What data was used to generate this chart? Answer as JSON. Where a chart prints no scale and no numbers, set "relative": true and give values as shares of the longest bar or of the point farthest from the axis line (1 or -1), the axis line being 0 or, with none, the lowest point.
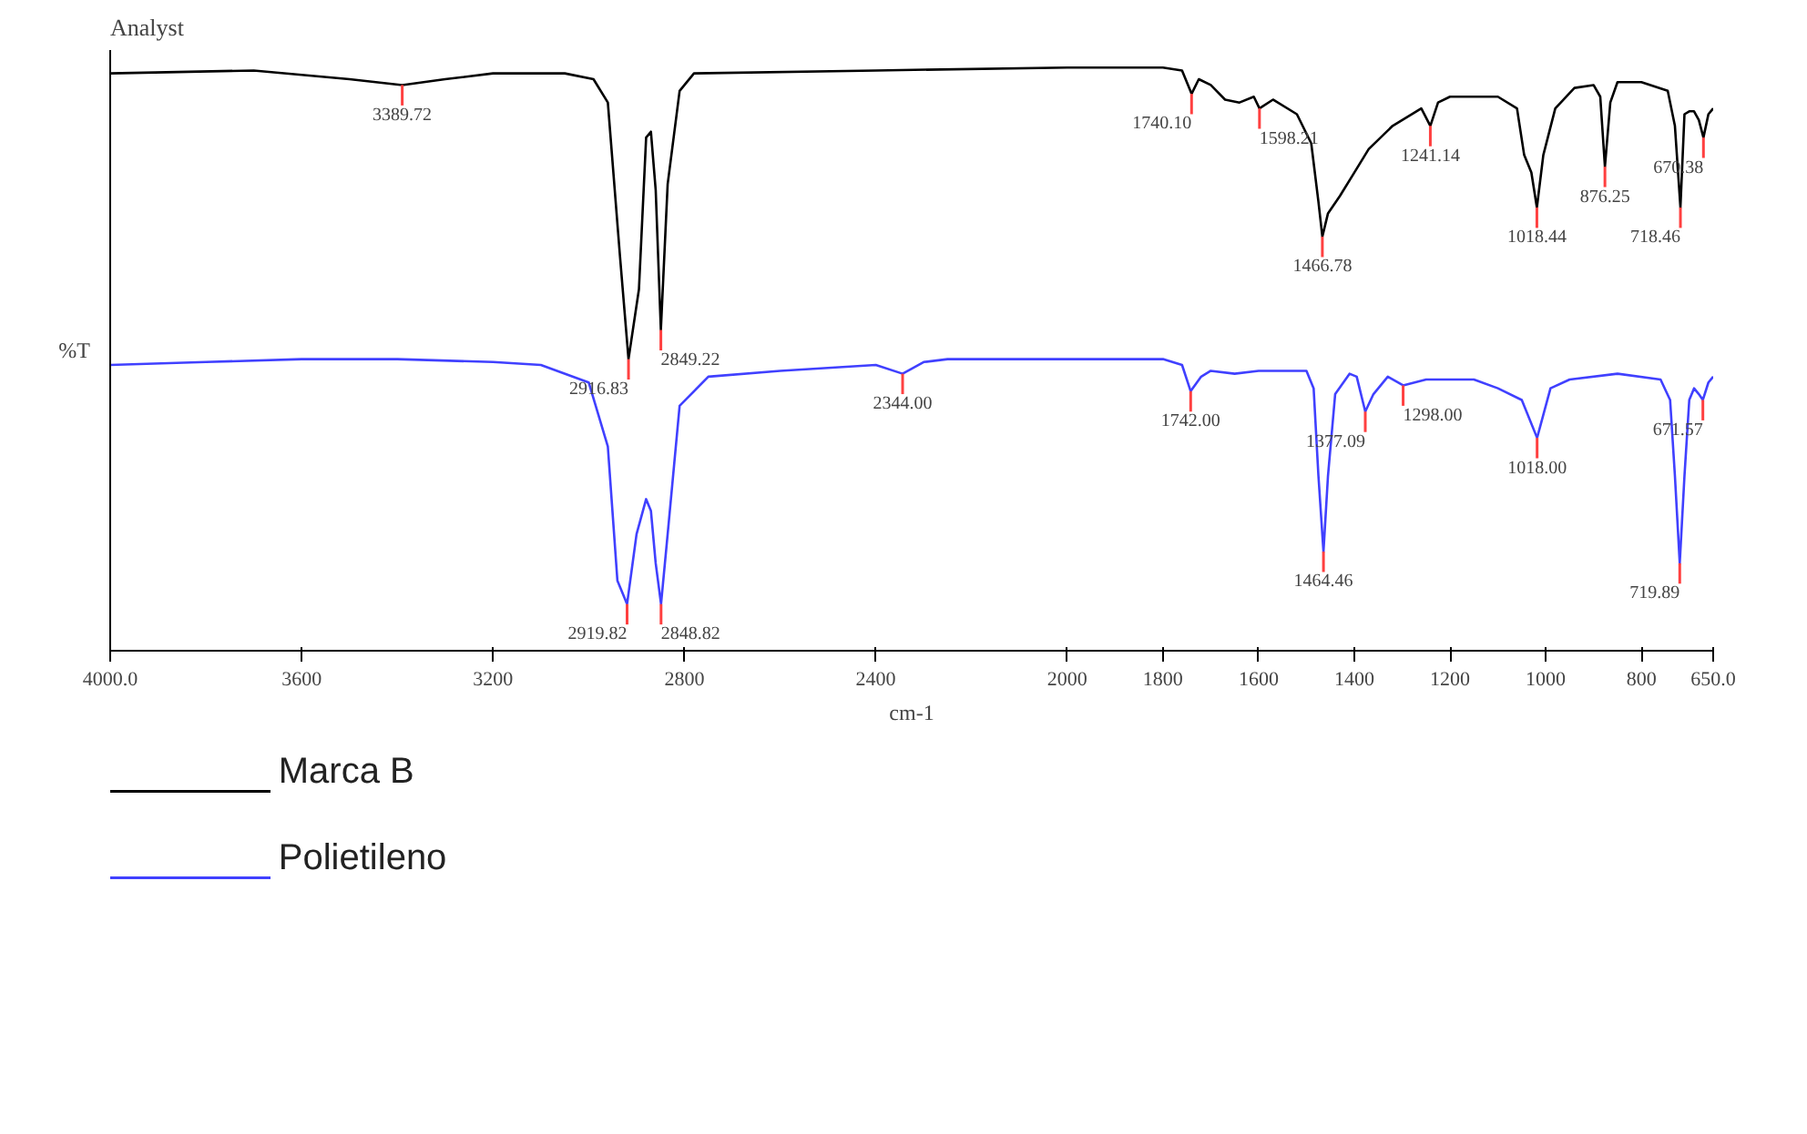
{
  "chart_data": {
    "type": "line",
    "title": "Analyst",
    "xlabel": "cm-1",
    "ylabel": "%T",
    "relative": true,
    "xlim": [
      4000,
      650
    ],
    "xticks": [
      {
        "value": 4000,
        "label": "4000.0"
      },
      3600,
      3200,
      2800,
      2400,
      2000,
      1800,
      1600,
      1400,
      1200,
      1000,
      800,
      {
        "value": 650,
        "label": "650.0"
      }
    ],
    "tick_labels": "x",
    "grid": false,
    "legend": "bottom",
    "marker": "none",
    "line_style": "solid",
    "series": [
      {
        "name": "Marca B",
        "color": "#000000",
        "x": [
          4000,
          3700,
          3500,
          3389.72,
          3300,
          3200,
          3050,
          2990,
          2960,
          2935,
          2916.83,
          2895,
          2880,
          2870,
          2860,
          2849.22,
          2835,
          2810,
          2780,
          2400,
          2000,
          1800,
          1760,
          1740.1,
          1725,
          1700,
          1670,
          1640,
          1610,
          1598.21,
          1570,
          1520,
          1490,
          1475,
          1466.78,
          1455,
          1430,
          1400,
          1370,
          1320,
          1260,
          1241.14,
          1225,
          1200,
          1100,
          1060,
          1045,
          1030,
          1018.44,
          1005,
          980,
          940,
          900,
          886,
          876.25,
          865,
          850,
          800,
          745,
          730,
          718.46,
          710,
          700,
          690,
          680,
          670.38,
          660,
          650
        ],
        "values": [
          0.99,
          0.995,
          0.98,
          0.97,
          0.98,
          0.99,
          0.99,
          0.98,
          0.94,
          0.68,
          0.5,
          0.62,
          0.88,
          0.89,
          0.79,
          0.55,
          0.8,
          0.96,
          0.99,
          0.995,
          1,
          1,
          0.995,
          0.955,
          0.98,
          0.97,
          0.945,
          0.94,
          0.95,
          0.93,
          0.945,
          0.92,
          0.87,
          0.77,
          0.71,
          0.75,
          0.78,
          0.82,
          0.86,
          0.9,
          0.93,
          0.9,
          0.94,
          0.95,
          0.95,
          0.93,
          0.85,
          0.82,
          0.76,
          0.85,
          0.93,
          0.965,
          0.97,
          0.95,
          0.83,
          0.94,
          0.975,
          0.975,
          0.96,
          0.9,
          0.76,
          0.92,
          0.925,
          0.925,
          0.91,
          0.88,
          0.92,
          0.93
        ]
      },
      {
        "name": "Polietileno",
        "color": "#4040ff",
        "x": [
          4000,
          3800,
          3600,
          3400,
          3200,
          3100,
          3000,
          2960,
          2940,
          2919.82,
          2900,
          2880,
          2870,
          2860,
          2848.82,
          2835,
          2810,
          2750,
          2600,
          2400,
          2344,
          2300,
          2250,
          2000,
          1800,
          1760,
          1742,
          1720,
          1700,
          1650,
          1600,
          1500,
          1485,
          1475,
          1464.46,
          1455,
          1440,
          1410,
          1395,
          1377.09,
          1360,
          1330,
          1298,
          1250,
          1150,
          1100,
          1050,
          1018,
          990,
          950,
          850,
          760,
          740,
          730,
          719.89,
          710,
          700,
          690,
          680,
          671.57,
          660,
          650
        ],
        "values": [
          0.49,
          0.495,
          0.5,
          0.5,
          0.495,
          0.49,
          0.46,
          0.35,
          0.12,
          0.08,
          0.2,
          0.26,
          0.24,
          0.15,
          0.08,
          0.2,
          0.42,
          0.47,
          0.48,
          0.49,
          0.475,
          0.495,
          0.5,
          0.5,
          0.5,
          0.49,
          0.445,
          0.47,
          0.48,
          0.475,
          0.48,
          0.48,
          0.45,
          0.3,
          0.17,
          0.3,
          0.44,
          0.475,
          0.47,
          0.41,
          0.44,
          0.47,
          0.455,
          0.465,
          0.465,
          0.45,
          0.43,
          0.365,
          0.45,
          0.465,
          0.475,
          0.465,
          0.43,
          0.3,
          0.15,
          0.3,
          0.43,
          0.45,
          0.44,
          0.43,
          0.46,
          0.47
        ]
      }
    ],
    "annotations": [
      {
        "text": "3389.72",
        "x": 3389.72,
        "y": 0.97
      },
      {
        "text": "2916.83",
        "x": 2916.83,
        "y": 0.5
      },
      {
        "text": "2849.22",
        "x": 2849.22,
        "y": 0.55
      },
      {
        "text": "1740.10",
        "x": 1740.1,
        "y": 0.955
      },
      {
        "text": "1598.21",
        "x": 1598.21,
        "y": 0.93
      },
      {
        "text": "1466.78",
        "x": 1466.78,
        "y": 0.71
      },
      {
        "text": "1241.14",
        "x": 1241.14,
        "y": 0.9
      },
      {
        "text": "1018.44",
        "x": 1018.44,
        "y": 0.76
      },
      {
        "text": "876.25",
        "x": 876.25,
        "y": 0.83
      },
      {
        "text": "718.46",
        "x": 718.46,
        "y": 0.76
      },
      {
        "text": "670.38",
        "x": 670.38,
        "y": 0.88
      },
      {
        "text": "2919.82",
        "x": 2919.82,
        "y": 0.08
      },
      {
        "text": "2848.82",
        "x": 2848.82,
        "y": 0.08
      },
      {
        "text": "2344.00",
        "x": 2344,
        "y": 0.475
      },
      {
        "text": "1742.00",
        "x": 1742,
        "y": 0.445
      },
      {
        "text": "1464.46",
        "x": 1464.46,
        "y": 0.17
      },
      {
        "text": "1377.09",
        "x": 1377.09,
        "y": 0.41
      },
      {
        "text": "1298.00",
        "x": 1298,
        "y": 0.455
      },
      {
        "text": "1018.00",
        "x": 1018,
        "y": 0.365
      },
      {
        "text": "719.89",
        "x": 719.89,
        "y": 0.15
      },
      {
        "text": "671.57",
        "x": 671.57,
        "y": 0.43
      }
    ]
  }
}
